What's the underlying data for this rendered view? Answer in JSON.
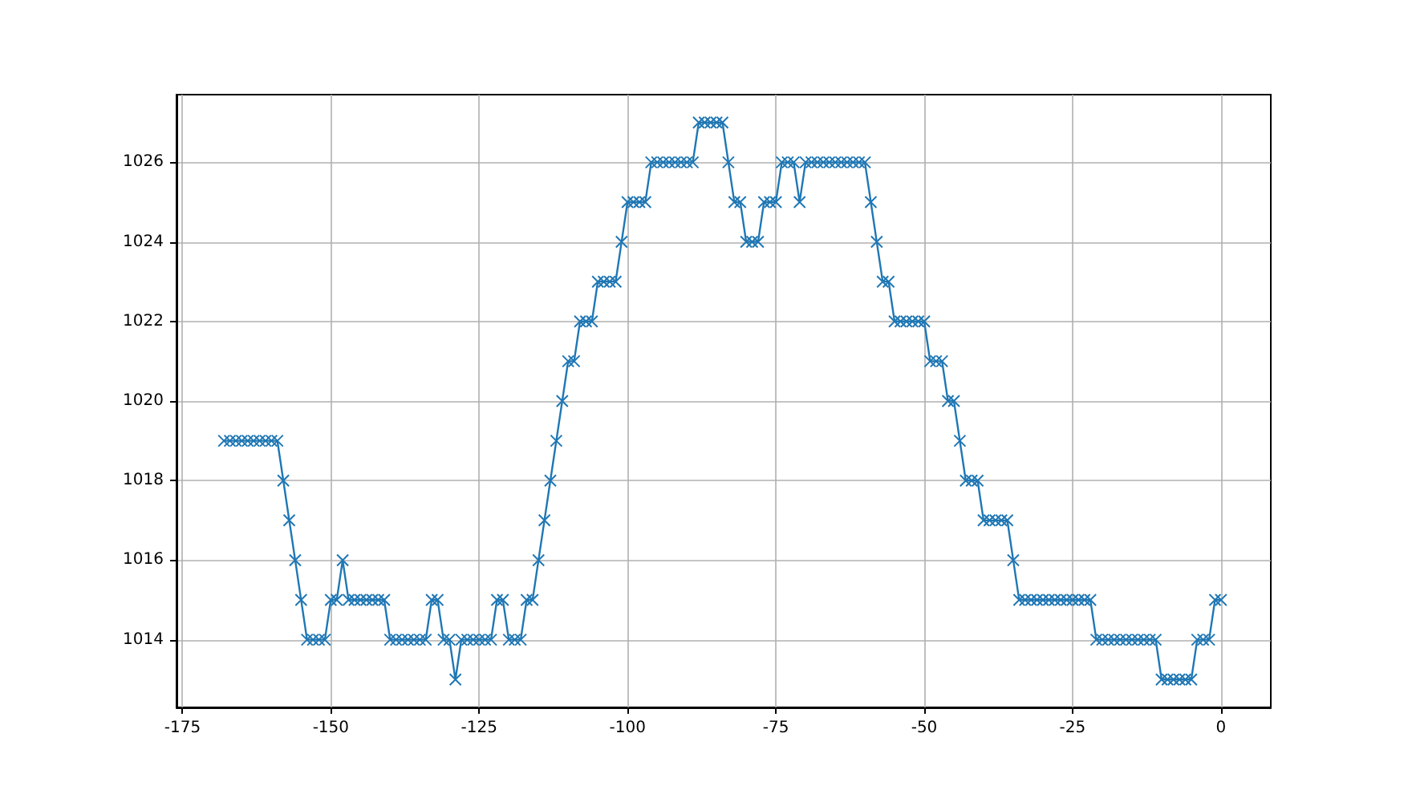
{
  "chart_data": {
    "type": "line",
    "marker": "cross",
    "line_style": "solid",
    "grid": true,
    "xlim": [
      -176,
      8.4
    ],
    "xticks": [
      -175,
      -150,
      -125,
      -100,
      -75,
      -50,
      -25,
      0
    ],
    "ylim": [
      1012.3,
      1027.7
    ],
    "yticks": [
      1014,
      1016,
      1018,
      1020,
      1022,
      1024,
      1026
    ],
    "series": [
      {
        "color": "#1f77b4",
        "x": [
          -168,
          -167,
          -166,
          -165,
          -164,
          -163,
          -162,
          -161,
          -160,
          -159,
          -158,
          -157,
          -156,
          -155,
          -154,
          -153,
          -152,
          -151,
          -150,
          -149,
          -148,
          -147,
          -146,
          -145,
          -144,
          -143,
          -142,
          -141,
          -140,
          -139,
          -138,
          -137,
          -136,
          -135,
          -134,
          -133,
          -132,
          -131,
          -130,
          -129,
          -128,
          -127,
          -126,
          -125,
          -124,
          -123,
          -122,
          -121,
          -120,
          -119,
          -118,
          -117,
          -116,
          -115,
          -114,
          -113,
          -112,
          -111,
          -110,
          -109,
          -108,
          -107,
          -106,
          -105,
          -104,
          -103,
          -102,
          -101,
          -100,
          -99,
          -98,
          -97,
          -96,
          -95,
          -94,
          -93,
          -92,
          -91,
          -90,
          -89,
          -88,
          -87,
          -86,
          -85,
          -84,
          -83,
          -82,
          -81,
          -80,
          -79,
          -78,
          -77,
          -76,
          -75,
          -74,
          -73,
          -72,
          -71,
          -70,
          -69,
          -68,
          -67,
          -66,
          -65,
          -64,
          -63,
          -62,
          -61,
          -60,
          -59,
          -58,
          -57,
          -56,
          -55,
          -54,
          -53,
          -52,
          -51,
          -50,
          -49,
          -48,
          -47,
          -46,
          -45,
          -44,
          -43,
          -42,
          -41,
          -40,
          -39,
          -38,
          -37,
          -36,
          -35,
          -34,
          -33,
          -32,
          -31,
          -30,
          -29,
          -28,
          -27,
          -26,
          -25,
          -24,
          -23,
          -22,
          -21,
          -20,
          -19,
          -18,
          -17,
          -16,
          -15,
          -14,
          -13,
          -12,
          -11,
          -10,
          -9,
          -8,
          -7,
          -6,
          -5,
          -4,
          -3,
          -2,
          -1,
          0
        ],
        "values": [
          1019,
          1019,
          1019,
          1019,
          1019,
          1019,
          1019,
          1019,
          1019,
          1019,
          1018,
          1017,
          1016,
          1015,
          1014,
          1014,
          1014,
          1014,
          1015,
          1015,
          1016,
          1015,
          1015,
          1015,
          1015,
          1015,
          1015,
          1015,
          1014,
          1014,
          1014,
          1014,
          1014,
          1014,
          1014,
          1015,
          1015,
          1014,
          1014,
          1013,
          1014,
          1014,
          1014,
          1014,
          1014,
          1014,
          1015,
          1015,
          1014,
          1014,
          1014,
          1015,
          1015,
          1016,
          1017,
          1018,
          1019,
          1020,
          1021,
          1021,
          1022,
          1022,
          1022,
          1023,
          1023,
          1023,
          1023,
          1024,
          1025,
          1025,
          1025,
          1025,
          1026,
          1026,
          1026,
          1026,
          1026,
          1026,
          1026,
          1026,
          1027,
          1027,
          1027,
          1027,
          1027,
          1026,
          1025,
          1025,
          1024,
          1024,
          1024,
          1025,
          1025,
          1025,
          1026,
          1026,
          1026,
          1025,
          1026,
          1026,
          1026,
          1026,
          1026,
          1026,
          1026,
          1026,
          1026,
          1026,
          1026,
          1025,
          1024,
          1023,
          1023,
          1022,
          1022,
          1022,
          1022,
          1022,
          1022,
          1021,
          1021,
          1021,
          1020,
          1020,
          1019,
          1018,
          1018,
          1018,
          1017,
          1017,
          1017,
          1017,
          1017,
          1016,
          1015,
          1015,
          1015,
          1015,
          1015,
          1015,
          1015,
          1015,
          1015,
          1015,
          1015,
          1015,
          1015,
          1014,
          1014,
          1014,
          1014,
          1014,
          1014,
          1014,
          1014,
          1014,
          1014,
          1014,
          1013,
          1013,
          1013,
          1013,
          1013,
          1013,
          1014,
          1014,
          1014,
          1015,
          1015
        ]
      }
    ]
  }
}
